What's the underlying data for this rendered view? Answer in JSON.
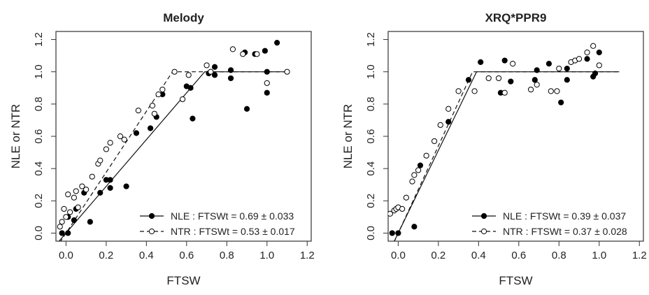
{
  "chart_data": [
    {
      "type": "scatter",
      "title": "Melody",
      "xlabel": "FTSW",
      "ylabel": "NLE or NTR",
      "xlim": [
        -0.05,
        1.22
      ],
      "ylim": [
        -0.05,
        1.25
      ],
      "x_ticks": [
        0.0,
        0.2,
        0.4,
        0.6,
        0.8,
        1.0,
        1.2
      ],
      "x_tick_labels": [
        "0.0",
        "0.2",
        "0.4",
        "0.6",
        "0.8",
        "1.0",
        "1.2"
      ],
      "y_ticks": [
        0.0,
        0.2,
        0.4,
        0.6,
        0.8,
        1.0,
        1.2
      ],
      "y_tick_labels": [
        "0.0",
        "0.2",
        "0.4",
        "0.6",
        "0.8",
        "1.0",
        "1.2"
      ],
      "grid": false,
      "legend_position": "bottom-right",
      "series": [
        {
          "name": "NLE : FTSWt = 0.69 ± 0.033",
          "marker": "filled-circle",
          "line": "solid",
          "threshold": 0.69,
          "points": [
            [
              -0.02,
              0.0
            ],
            [
              0.01,
              0.0
            ],
            [
              0.01,
              0.1
            ],
            [
              0.04,
              0.08
            ],
            [
              0.05,
              0.15
            ],
            [
              0.09,
              0.25
            ],
            [
              0.12,
              0.07
            ],
            [
              0.17,
              0.25
            ],
            [
              0.2,
              0.33
            ],
            [
              0.22,
              0.33
            ],
            [
              0.22,
              0.28
            ],
            [
              0.3,
              0.29
            ],
            [
              0.35,
              0.62
            ],
            [
              0.42,
              0.65
            ],
            [
              0.45,
              0.72
            ],
            [
              0.48,
              0.86
            ],
            [
              0.6,
              0.91
            ],
            [
              0.62,
              0.9
            ],
            [
              0.63,
              0.71
            ],
            [
              0.71,
              0.99
            ],
            [
              0.74,
              1.03
            ],
            [
              0.74,
              0.98
            ],
            [
              0.82,
              1.01
            ],
            [
              0.82,
              0.96
            ],
            [
              0.89,
              1.12
            ],
            [
              0.9,
              0.77
            ],
            [
              0.94,
              1.11
            ],
            [
              0.99,
              1.13
            ],
            [
              1.0,
              1.0
            ],
            [
              1.0,
              0.87
            ],
            [
              1.05,
              1.18
            ]
          ]
        },
        {
          "name": "NTR : FTSWt = 0.53 ± 0.017",
          "marker": "open-circle",
          "line": "dashed",
          "threshold": 0.53,
          "points": [
            [
              -0.03,
              0.04
            ],
            [
              -0.02,
              0.07
            ],
            [
              -0.01,
              0.15
            ],
            [
              0.0,
              0.1
            ],
            [
              0.01,
              0.24
            ],
            [
              0.02,
              0.13
            ],
            [
              0.04,
              0.22
            ],
            [
              0.05,
              0.26
            ],
            [
              0.06,
              0.16
            ],
            [
              0.08,
              0.29
            ],
            [
              0.1,
              0.27
            ],
            [
              0.13,
              0.35
            ],
            [
              0.16,
              0.43
            ],
            [
              0.17,
              0.45
            ],
            [
              0.2,
              0.52
            ],
            [
              0.22,
              0.56
            ],
            [
              0.27,
              0.6
            ],
            [
              0.29,
              0.58
            ],
            [
              0.36,
              0.76
            ],
            [
              0.43,
              0.79
            ],
            [
              0.44,
              0.74
            ],
            [
              0.46,
              0.86
            ],
            [
              0.48,
              0.89
            ],
            [
              0.54,
              1.0
            ],
            [
              0.58,
              0.83
            ],
            [
              0.61,
              0.98
            ],
            [
              0.7,
              1.04
            ],
            [
              0.72,
              1.0
            ],
            [
              0.83,
              1.14
            ],
            [
              0.88,
              1.11
            ],
            [
              0.95,
              1.11
            ],
            [
              1.0,
              0.93
            ],
            [
              1.1,
              1.0
            ]
          ]
        }
      ]
    },
    {
      "type": "scatter",
      "title": "XRQ*PPR9",
      "xlabel": "FTSW",
      "ylabel": "NLE or NTR",
      "xlim": [
        -0.05,
        1.22
      ],
      "ylim": [
        -0.05,
        1.25
      ],
      "x_ticks": [
        0.0,
        0.2,
        0.4,
        0.6,
        0.8,
        1.0,
        1.2
      ],
      "x_tick_labels": [
        "0.0",
        "0.2",
        "0.4",
        "0.6",
        "0.8",
        "1.0",
        "1.2"
      ],
      "y_ticks": [
        0.0,
        0.2,
        0.4,
        0.6,
        0.8,
        1.0,
        1.2
      ],
      "y_tick_labels": [
        "0.0",
        "0.2",
        "0.4",
        "0.6",
        "0.8",
        "1.0",
        "1.2"
      ],
      "grid": false,
      "legend_position": "bottom-right",
      "series": [
        {
          "name": "NLE : FTSWt = 0.39 ± 0.037",
          "marker": "filled-circle",
          "line": "solid",
          "threshold": 0.39,
          "points": [
            [
              -0.03,
              0.0
            ],
            [
              0.0,
              0.0
            ],
            [
              0.08,
              0.04
            ],
            [
              0.11,
              0.42
            ],
            [
              0.25,
              0.69
            ],
            [
              0.35,
              0.95
            ],
            [
              0.41,
              1.06
            ],
            [
              0.51,
              0.87
            ],
            [
              0.53,
              1.07
            ],
            [
              0.56,
              0.94
            ],
            [
              0.68,
              0.95
            ],
            [
              0.69,
              1.01
            ],
            [
              0.75,
              1.05
            ],
            [
              0.81,
              0.81
            ],
            [
              0.84,
              1.02
            ],
            [
              0.84,
              0.95
            ],
            [
              0.94,
              1.08
            ],
            [
              0.97,
              0.97
            ],
            [
              0.98,
              0.99
            ],
            [
              1.0,
              1.12
            ]
          ]
        },
        {
          "name": "NTR : FTSWt = 0.37 ± 0.028",
          "marker": "open-circle",
          "line": "dashed",
          "threshold": 0.37,
          "points": [
            [
              -0.04,
              0.12
            ],
            [
              -0.02,
              0.14
            ],
            [
              -0.01,
              0.15
            ],
            [
              0.0,
              0.16
            ],
            [
              0.02,
              0.15
            ],
            [
              0.04,
              0.22
            ],
            [
              0.07,
              0.32
            ],
            [
              0.08,
              0.36
            ],
            [
              0.1,
              0.39
            ],
            [
              0.14,
              0.48
            ],
            [
              0.18,
              0.57
            ],
            [
              0.21,
              0.67
            ],
            [
              0.25,
              0.77
            ],
            [
              0.3,
              0.88
            ],
            [
              0.38,
              0.88
            ],
            [
              0.45,
              0.96
            ],
            [
              0.5,
              0.96
            ],
            [
              0.53,
              0.87
            ],
            [
              0.57,
              1.05
            ],
            [
              0.66,
              0.89
            ],
            [
              0.69,
              0.92
            ],
            [
              0.76,
              0.88
            ],
            [
              0.79,
              0.88
            ],
            [
              0.8,
              1.02
            ],
            [
              0.86,
              1.06
            ],
            [
              0.88,
              1.07
            ],
            [
              0.9,
              1.08
            ],
            [
              0.94,
              1.12
            ],
            [
              0.97,
              1.16
            ],
            [
              1.0,
              1.04
            ]
          ]
        }
      ]
    }
  ]
}
